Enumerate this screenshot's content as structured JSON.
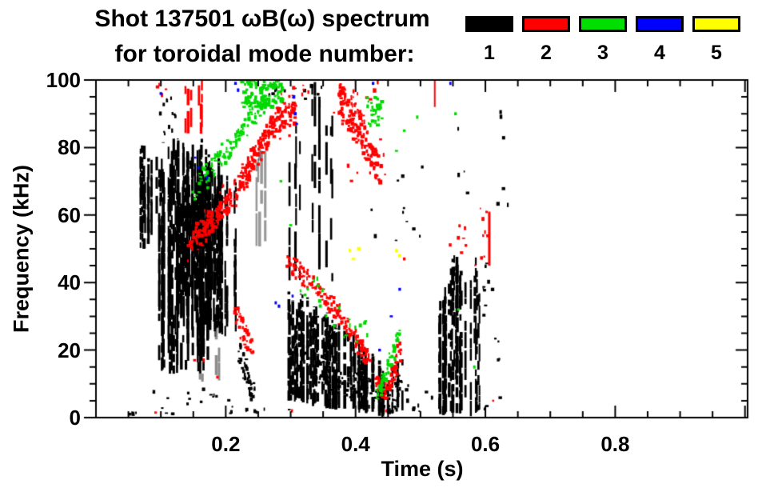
{
  "header": {
    "title_line1": "Shot 137501 ωB(ω) spectrum",
    "title_line2": "for toroidal mode number:",
    "shot_number": "137501"
  },
  "legend": {
    "items": [
      {
        "label": "1",
        "color": "#000000"
      },
      {
        "label": "2",
        "color": "#FF0000"
      },
      {
        "label": "3",
        "color": "#00DF00"
      },
      {
        "label": "4",
        "color": "#0000FF"
      },
      {
        "label": "5",
        "color": "#FFFF00"
      }
    ]
  },
  "chart_data": {
    "type": "heatmap",
    "subtype": "spectrogram-scatter",
    "title": "Shot 137501 ωB(ω) spectrum for toroidal mode number: 1 2 3 4 5",
    "xlabel": "Time (s)",
    "ylabel": "Frequency (kHz)",
    "xlim": [
      0,
      1.004
    ],
    "ylim": [
      0,
      100
    ],
    "grid": false,
    "legend_position": "top-right",
    "x_major_ticks": [
      0,
      0.2,
      0.4,
      0.6,
      0.8,
      1.0
    ],
    "x_minor_step": 0.05,
    "x_tick_labels": [
      {
        "value": 0.2,
        "label": "0.2"
      },
      {
        "value": 0.4,
        "label": "0.4"
      },
      {
        "value": 0.6,
        "label": "0.6"
      },
      {
        "value": 0.8,
        "label": "0.8"
      }
    ],
    "y_major_ticks": [
      0,
      20,
      40,
      60,
      80,
      100
    ],
    "y_minor_step": 5,
    "y_tick_labels": [
      {
        "value": 0,
        "label": "0"
      },
      {
        "value": 20,
        "label": "20"
      },
      {
        "value": 40,
        "label": "40"
      },
      {
        "value": 60,
        "label": "60"
      },
      {
        "value": 80,
        "label": "80"
      },
      {
        "value": 100,
        "label": "100"
      }
    ],
    "modes": [
      {
        "mode": 1,
        "color": "#000000"
      },
      {
        "mode": 2,
        "color": "#FF0000"
      },
      {
        "mode": 3,
        "color": "#00D900"
      },
      {
        "mode": 4,
        "color": "#0000FF"
      },
      {
        "mode": 5,
        "color": "#FFFF00"
      }
    ],
    "features": [
      {
        "m": 1,
        "k": "vstreaks",
        "t": [
          0.064,
          0.098
        ],
        "f": [
          50,
          81
        ],
        "n": 16,
        "seg": [
          1.5,
          6
        ],
        "p": 0.75
      },
      {
        "m": 1,
        "k": "vstreaks",
        "t": [
          0.094,
          0.178
        ],
        "f": [
          13,
          83
        ],
        "n": 46,
        "seg": [
          2,
          9
        ],
        "p": 0.8
      },
      {
        "m": 1,
        "k": "vstreaks",
        "t": [
          0.13,
          0.19
        ],
        "f": [
          28,
          78
        ],
        "n": 26,
        "seg": [
          2,
          10
        ],
        "p": 0.85
      },
      {
        "m": 1,
        "k": "vstreaks",
        "t": [
          0.176,
          0.216
        ],
        "f": [
          24,
          72
        ],
        "n": 15,
        "seg": [
          1.5,
          7
        ],
        "p": 0.7
      },
      {
        "m": 1,
        "k": "specks",
        "t": [
          0.098,
          0.126
        ],
        "f": [
          84,
          95
        ],
        "n": 12,
        "s": 3
      },
      {
        "m": 1,
        "k": "vstreaks",
        "t": [
          0.158,
          0.19
        ],
        "f": [
          10,
          34
        ],
        "n": 6,
        "seg": [
          2,
          6
        ],
        "p": 0.5,
        "a": 0.45
      },
      {
        "m": 1,
        "k": "vstreaks",
        "t": [
          0.245,
          0.268
        ],
        "f": [
          50,
          82
        ],
        "n": 5,
        "seg": [
          3,
          12
        ],
        "p": 0.6,
        "a": 0.4
      },
      {
        "m": 1,
        "k": "specks",
        "t": [
          0.08,
          0.19
        ],
        "f": [
          1,
          9
        ],
        "n": 14,
        "s": 3
      },
      {
        "m": 1,
        "k": "band",
        "pts": [
          [
            0.219,
            19
          ],
          [
            0.231,
            14
          ],
          [
            0.242,
            8
          ]
        ],
        "th": 7,
        "n": 40,
        "s": 3
      },
      {
        "m": 1,
        "k": "specks",
        "t": [
          0.2,
          0.3
        ],
        "f": [
          1,
          7
        ],
        "n": 10,
        "s": 3
      },
      {
        "m": 1,
        "k": "vstreaks",
        "t": [
          0.295,
          0.365
        ],
        "f": [
          40,
          100
        ],
        "n": 13,
        "seg": [
          2,
          10
        ],
        "p": 0.45
      },
      {
        "m": 1,
        "k": "specks",
        "t": [
          0.26,
          0.35
        ],
        "f": [
          94,
          100
        ],
        "n": 12,
        "s": 3
      },
      {
        "m": 1,
        "k": "vstreaksPath",
        "top": [
          [
            0.295,
            36
          ],
          [
            0.34,
            31
          ],
          [
            0.385,
            25
          ],
          [
            0.42,
            17
          ],
          [
            0.445,
            12
          ],
          [
            0.46,
            14
          ],
          [
            0.472,
            17
          ]
        ],
        "bot": [
          [
            0.295,
            6
          ],
          [
            0.34,
            4
          ],
          [
            0.385,
            3
          ],
          [
            0.42,
            2
          ],
          [
            0.445,
            1
          ],
          [
            0.46,
            2
          ],
          [
            0.472,
            3
          ]
        ],
        "n": 75,
        "seg": [
          1.5,
          6
        ],
        "p": 0.85
      },
      {
        "m": 1,
        "k": "band",
        "pts": [
          [
            0.3,
            20
          ],
          [
            0.35,
            14
          ],
          [
            0.4,
            9
          ],
          [
            0.44,
            5
          ],
          [
            0.47,
            8
          ]
        ],
        "th": 10,
        "n": 160,
        "s": 3
      },
      {
        "m": 1,
        "k": "vstreaksPath",
        "top": [
          [
            0.525,
            30
          ],
          [
            0.54,
            42
          ],
          [
            0.555,
            47
          ],
          [
            0.57,
            40
          ],
          [
            0.585,
            45
          ],
          [
            0.598,
            30
          ]
        ],
        "bot": [
          [
            0.525,
            2
          ],
          [
            0.54,
            1
          ],
          [
            0.555,
            2
          ],
          [
            0.57,
            1
          ],
          [
            0.585,
            2
          ],
          [
            0.598,
            3
          ]
        ],
        "n": 26,
        "seg": [
          1.5,
          6
        ],
        "p": 0.7
      },
      {
        "m": 1,
        "k": "specks",
        "t": [
          0.595,
          0.625
        ],
        "f": [
          2,
          50
        ],
        "n": 16,
        "s": 3
      },
      {
        "m": 1,
        "k": "specks",
        "t": [
          0.478,
          0.525
        ],
        "f": [
          0,
          12
        ],
        "n": 10,
        "s": 3
      },
      {
        "m": 1,
        "k": "specks",
        "t": [
          0.42,
          0.52
        ],
        "f": [
          52,
          75
        ],
        "n": 11,
        "s": 3
      },
      {
        "m": 1,
        "k": "specks",
        "t": [
          0.54,
          0.635
        ],
        "f": [
          50,
          92
        ],
        "n": 10,
        "s": 3
      },
      {
        "m": 1,
        "k": "specks",
        "t": [
          0.048,
          0.065
        ],
        "f": [
          0,
          3
        ],
        "n": 5,
        "s": 3
      },
      {
        "m": 2,
        "k": "vstreaks",
        "t": [
          0.135,
          0.172
        ],
        "f": [
          84,
          100
        ],
        "n": 7,
        "seg": [
          2,
          7
        ],
        "p": 0.7
      },
      {
        "m": 2,
        "k": "specks",
        "t": [
          0.093,
          0.112
        ],
        "f": [
          95,
          100
        ],
        "n": 4,
        "s": 3
      },
      {
        "m": 2,
        "k": "band",
        "pts": [
          [
            0.143,
            52
          ],
          [
            0.175,
            57
          ],
          [
            0.205,
            64
          ],
          [
            0.235,
            73
          ],
          [
            0.262,
            83
          ],
          [
            0.285,
            89
          ],
          [
            0.307,
            90
          ]
        ],
        "th": 7,
        "n": 260,
        "s": 3.5
      },
      {
        "m": 2,
        "k": "band",
        "pts": [
          [
            0.143,
            52
          ],
          [
            0.175,
            57
          ],
          [
            0.205,
            64
          ],
          [
            0.235,
            73
          ],
          [
            0.262,
            83
          ],
          [
            0.285,
            89
          ],
          [
            0.307,
            90
          ]
        ],
        "th": 14,
        "n": 40,
        "s": 2.5
      },
      {
        "m": 2,
        "k": "band",
        "pts": [
          [
            0.216,
            30
          ],
          [
            0.228,
            26
          ],
          [
            0.24,
            21
          ]
        ],
        "th": 7,
        "n": 45,
        "s": 3
      },
      {
        "m": 2,
        "k": "band",
        "pts": [
          [
            0.295,
            47
          ],
          [
            0.325,
            41
          ],
          [
            0.355,
            35
          ],
          [
            0.385,
            28
          ],
          [
            0.41,
            20
          ],
          [
            0.42,
            17
          ]
        ],
        "th": 5,
        "n": 170,
        "s": 3
      },
      {
        "m": 2,
        "k": "band",
        "pts": [
          [
            0.43,
            12
          ],
          [
            0.443,
            7
          ],
          [
            0.452,
            9
          ],
          [
            0.462,
            15
          ],
          [
            0.468,
            21
          ]
        ],
        "th": 5,
        "n": 90,
        "s": 3
      },
      {
        "m": 2,
        "k": "band",
        "pts": [
          [
            0.372,
            96
          ],
          [
            0.395,
            89
          ],
          [
            0.415,
            81
          ],
          [
            0.437,
            74
          ]
        ],
        "th": 11,
        "n": 120,
        "s": 3.5
      },
      {
        "m": 2,
        "k": "specks",
        "t": [
          0.365,
          0.45
        ],
        "f": [
          70,
          100
        ],
        "n": 25,
        "s": 3
      },
      {
        "m": 2,
        "k": "vline",
        "t": 0.522,
        "f": [
          92,
          100
        ],
        "w": 2
      },
      {
        "m": 2,
        "k": "vline",
        "t": 0.606,
        "f": [
          45,
          61
        ],
        "w": 3
      },
      {
        "m": 2,
        "k": "specks",
        "t": [
          0.583,
          0.605
        ],
        "f": [
          45,
          62
        ],
        "n": 9,
        "s": 3
      },
      {
        "m": 2,
        "k": "specks",
        "t": [
          0.535,
          0.57
        ],
        "f": [
          47,
          57
        ],
        "n": 6,
        "s": 3
      },
      {
        "m": 2,
        "k": "points",
        "pts": [
          [
            0.092,
            1.5
          ],
          [
            0.152,
            17
          ],
          [
            0.166,
            17
          ],
          [
            0.187,
            12
          ],
          [
            0.302,
            2
          ],
          [
            0.447,
            2
          ],
          [
            0.57,
            51
          ],
          [
            0.612,
            5
          ],
          [
            0.475,
            47
          ]
        ],
        "s": 3
      },
      {
        "m": 2,
        "k": "specks",
        "t": [
          0.3,
          0.328
        ],
        "f": [
          94,
          100
        ],
        "n": 5,
        "s": 3
      },
      {
        "m": 3,
        "k": "band",
        "pts": [
          [
            0.158,
            70
          ],
          [
            0.188,
            76
          ],
          [
            0.215,
            82
          ],
          [
            0.238,
            88
          ],
          [
            0.26,
            93
          ],
          [
            0.278,
            97
          ]
        ],
        "th": 6,
        "n": 110,
        "s": 3
      },
      {
        "m": 3,
        "k": "blob",
        "t": [
          0.225,
          0.288
        ],
        "f": [
          92,
          100
        ],
        "n": 90,
        "s": 3.5
      },
      {
        "m": 3,
        "k": "specks",
        "t": [
          0.146,
          0.178
        ],
        "f": [
          60,
          70
        ],
        "n": 5,
        "s": 3
      },
      {
        "m": 3,
        "k": "band",
        "pts": [
          [
            0.31,
            42
          ],
          [
            0.36,
            33
          ],
          [
            0.4,
            26
          ],
          [
            0.42,
            24
          ]
        ],
        "th": 10,
        "n": 22,
        "s": 3
      },
      {
        "m": 3,
        "k": "band",
        "pts": [
          [
            0.432,
            6
          ],
          [
            0.447,
            13
          ],
          [
            0.458,
            19
          ],
          [
            0.468,
            27
          ]
        ],
        "th": 3.5,
        "n": 60,
        "s": 3
      },
      {
        "m": 3,
        "k": "blob",
        "t": [
          0.418,
          0.441
        ],
        "f": [
          86,
          95
        ],
        "n": 30,
        "s": 3
      },
      {
        "m": 3,
        "k": "points",
        "pts": [
          [
            0.495,
            89
          ],
          [
            0.554,
            90
          ],
          [
            0.558,
            32
          ],
          [
            0.583,
            15
          ],
          [
            0.463,
            79
          ],
          [
            0.475,
            85
          ],
          [
            0.3,
            57
          ],
          [
            0.285,
            70
          ]
        ],
        "s": 3
      },
      {
        "m": 4,
        "k": "points",
        "pts": [
          [
            0.1,
            96
          ],
          [
            0.153,
            77
          ],
          [
            0.158,
            74
          ],
          [
            0.171,
            71
          ],
          [
            0.215,
            99
          ],
          [
            0.219,
            97
          ],
          [
            0.305,
            95
          ],
          [
            0.307,
            90
          ],
          [
            0.309,
            87
          ],
          [
            0.277,
            34
          ],
          [
            0.303,
            36
          ],
          [
            0.282,
            33
          ],
          [
            0.437,
            20
          ],
          [
            0.468,
            38
          ],
          [
            0.427,
            99
          ],
          [
            0.546,
            99
          ],
          [
            0.455,
            30
          ]
        ],
        "s": 3
      },
      {
        "m": 5,
        "k": "points",
        "pts": [
          [
            0.391,
            49.5
          ],
          [
            0.397,
            47
          ],
          [
            0.468,
            48
          ],
          [
            0.405,
            50
          ],
          [
            0.463,
            49.5
          ]
        ],
        "s": 3.5
      }
    ]
  }
}
